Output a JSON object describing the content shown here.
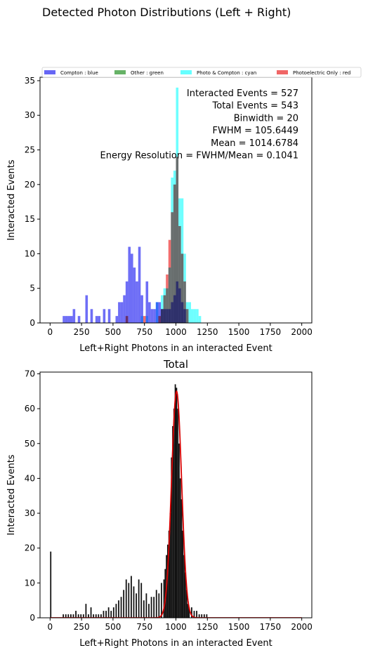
{
  "suptitle": "Detected Photon Distributions (Left + Right)",
  "chart_data": [
    {
      "type": "bar",
      "subtype": "overlaid histogram",
      "title": "",
      "xlabel": "Left+Right Photons in an interacted Event",
      "ylabel": "Interacted Events",
      "xlim": [
        -80,
        2080
      ],
      "ylim": [
        0,
        35.5
      ],
      "xticks": [
        0,
        250,
        500,
        750,
        1000,
        1250,
        1500,
        1750,
        2000
      ],
      "yticks": [
        0,
        5,
        10,
        15,
        20,
        25,
        30,
        35
      ],
      "bin_width": 20,
      "legend": {
        "placement": "above-plot",
        "entries": [
          {
            "label": "Compton : blue",
            "color": "#6666f5"
          },
          {
            "label": "Other : green",
            "color": "#66b266"
          },
          {
            "label": "Photo & Compton : cyan",
            "color": "#66ffff"
          },
          {
            "label": "Photoelectric Only : red",
            "color": "#f06666"
          }
        ]
      },
      "annotations": [
        "Interacted Events = 527",
        "Total Events = 543",
        "Binwidth = 20",
        "FWHM = 105.6449",
        "Mean = 1014.6784",
        "Energy Resolution = FWHM/Mean = 0.1041"
      ],
      "series": [
        {
          "name": "Compton : blue",
          "color": "#6666f5",
          "x": [
            100,
            120,
            140,
            160,
            180,
            220,
            280,
            320,
            360,
            380,
            420,
            460,
            520,
            540,
            560,
            580,
            600,
            620,
            640,
            660,
            680,
            700,
            720,
            760,
            780,
            800,
            820,
            840,
            860,
            880,
            900,
            920,
            940,
            960,
            980,
            1000,
            1020,
            1040,
            1060
          ],
          "values": [
            1,
            1,
            1,
            1,
            2,
            1,
            4,
            2,
            1,
            1,
            2,
            2,
            1,
            3,
            3,
            4,
            6,
            11,
            10,
            8,
            6,
            11,
            4,
            6,
            3,
            2,
            2,
            3,
            3,
            2,
            2,
            2,
            2,
            3,
            4,
            6,
            5,
            3,
            2
          ]
        },
        {
          "name": "Other : green",
          "color": "#66b266",
          "x": [],
          "values": []
        },
        {
          "name": "Photo & Compton : cyan",
          "color": "#66ffff",
          "x": [
            720,
            760,
            840,
            880,
            900,
            920,
            940,
            960,
            980,
            1000,
            1020,
            1040,
            1060,
            1080,
            1100,
            1120,
            1140,
            1160,
            1180
          ],
          "values": [
            1,
            1,
            3,
            4,
            5,
            5,
            8,
            21,
            22,
            34,
            18,
            18,
            10,
            3,
            3,
            2,
            2,
            2,
            1
          ]
        },
        {
          "name": "Photoelectric Only : red",
          "color": "#f06666",
          "x": [
            600,
            740,
            860,
            880,
            900,
            920,
            940,
            960,
            980,
            1000,
            1020,
            1040,
            1060,
            1080
          ],
          "values": [
            1,
            1,
            1,
            2,
            4,
            7,
            12,
            16,
            20,
            24,
            14,
            10,
            6,
            2
          ]
        }
      ]
    },
    {
      "type": "bar",
      "subtype": "histogram with gaussian fit",
      "title": "Total",
      "xlabel": "Left+Right Photons in an interacted Event",
      "ylabel": "Interacted Events",
      "xlim": [
        -80,
        2080
      ],
      "ylim": [
        0,
        70.5
      ],
      "xticks": [
        0,
        250,
        500,
        750,
        1000,
        1250,
        1500,
        1750,
        2000
      ],
      "yticks": [
        0,
        10,
        20,
        30,
        40,
        50,
        60,
        70
      ],
      "bin_width": 10,
      "series": [
        {
          "name": "",
          "color": "#111111",
          "x": [
            0,
            100,
            120,
            140,
            160,
            180,
            200,
            220,
            240,
            260,
            280,
            300,
            320,
            340,
            360,
            380,
            400,
            420,
            440,
            460,
            480,
            500,
            520,
            540,
            560,
            580,
            600,
            620,
            640,
            660,
            680,
            700,
            720,
            740,
            760,
            780,
            800,
            820,
            840,
            860,
            880,
            900,
            910,
            920,
            930,
            940,
            950,
            960,
            970,
            980,
            990,
            1000,
            1010,
            1020,
            1030,
            1040,
            1050,
            1060,
            1070,
            1080,
            1090,
            1100,
            1120,
            1140,
            1160,
            1180,
            1200,
            1220,
            1240
          ],
          "values": [
            19,
            1,
            1,
            1,
            1,
            1,
            2,
            1,
            1,
            1,
            4,
            1,
            3,
            1,
            1,
            1,
            1,
            2,
            2,
            3,
            2,
            3,
            4,
            5,
            6,
            8,
            11,
            10,
            12,
            9,
            7,
            11,
            10,
            5,
            7,
            4,
            6,
            6,
            8,
            7,
            10,
            11,
            14,
            18,
            21,
            25,
            30,
            46,
            55,
            60,
            67,
            66,
            60,
            50,
            40,
            34,
            25,
            18,
            13,
            8,
            4,
            3,
            3,
            2,
            2,
            1,
            1,
            1,
            1
          ]
        },
        {
          "name": "",
          "type": "line",
          "color": "#d80000",
          "fit": {
            "kind": "gaussian",
            "amplitude": 65,
            "mean": 1005,
            "sigma": 40
          }
        }
      ]
    }
  ]
}
